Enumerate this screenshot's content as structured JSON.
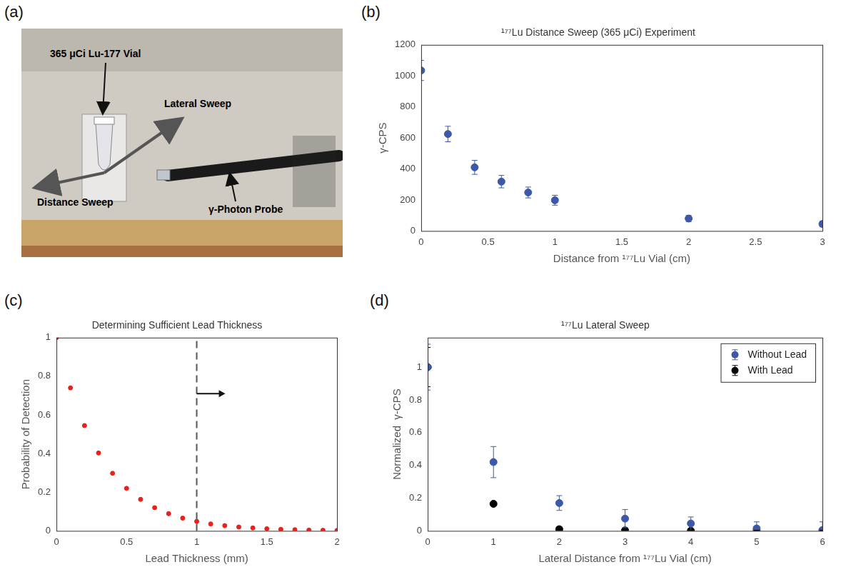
{
  "photo": {
    "panel": "(a)",
    "labels": [
      "365 μCi Lu-177 Vial",
      "Lateral Sweep",
      "Distance Sweep",
      "γ-Photon Probe"
    ]
  },
  "chart_data": [
    {
      "panel": "(b)",
      "type": "scatter",
      "title": "¹⁷⁷Lu Distance Sweep (365 μCi) Experiment",
      "x_label": "Distance from ¹⁷⁷Lu Vial (cm)",
      "y_label": "γ-CPS",
      "xlim": [
        0,
        3
      ],
      "xticks": [
        0,
        0.5,
        1,
        1.5,
        2,
        2.5,
        3
      ],
      "ylim": [
        0,
        1200
      ],
      "yticks": [
        0,
        200,
        400,
        600,
        800,
        1000,
        1200
      ],
      "grid": false,
      "series": [
        {
          "color": "#3d58a8",
          "marker": "circle",
          "x": [
            0,
            0.2,
            0.4,
            0.6,
            0.8,
            1,
            2,
            3
          ],
          "values": [
            1035,
            625,
            410,
            318,
            248,
            198,
            80,
            45
          ],
          "errors": [
            65,
            50,
            45,
            40,
            35,
            32,
            20,
            18
          ]
        }
      ]
    },
    {
      "panel": "(c)",
      "type": "scatter",
      "title": "Determining Sufficient Lead Thickness",
      "x_label": "Lead Thickness (mm)",
      "y_label": "Probability of Detection",
      "xlim": [
        0,
        2
      ],
      "xticks": [
        0,
        0.5,
        1,
        1.5,
        2
      ],
      "ylim": [
        0,
        1
      ],
      "yticks": [
        0,
        0.2,
        0.4,
        0.6,
        0.8,
        1
      ],
      "grid": false,
      "threshold": 1,
      "series": [
        {
          "color": "#e8211c",
          "marker": "circle",
          "x": [
            0,
            0.1,
            0.2,
            0.3,
            0.4,
            0.5,
            0.6,
            0.7,
            0.8,
            0.9,
            1,
            1.1,
            1.2,
            1.3,
            1.4,
            1.5,
            1.6,
            1.7,
            1.8,
            1.9,
            2
          ],
          "values": [
            1,
            0.74,
            0.545,
            0.403,
            0.298,
            0.22,
            0.163,
            0.12,
            0.089,
            0.066,
            0.049,
            0.036,
            0.027,
            0.02,
            0.015,
            0.011,
            0.008,
            0.006,
            0.004,
            0.003,
            0.002
          ]
        }
      ]
    },
    {
      "panel": "(d)",
      "type": "scatter",
      "title": "¹⁷⁷Lu Lateral Sweep",
      "x_label": "Lateral Distance from ¹⁷⁷Lu Vial (cm)",
      "y_label": "Normalized  γ-CPS",
      "xlim": [
        0,
        6
      ],
      "xticks": [
        0,
        1,
        2,
        3,
        4,
        5,
        6
      ],
      "ylim": [
        0,
        1.18
      ],
      "yticks": [
        0,
        0.2,
        0.4,
        0.6,
        0.8,
        1
      ],
      "grid": false,
      "legend": "northeast",
      "series": [
        {
          "name": "Without Lead",
          "color": "#3d58a8",
          "marker": "circle",
          "x": [
            0,
            1,
            2,
            3,
            4,
            5,
            6
          ],
          "values": [
            1,
            0.42,
            0.17,
            0.075,
            0.045,
            0.015,
            0.005
          ],
          "errors": [
            0.14,
            0.095,
            0.045,
            0.055,
            0.04,
            0.04,
            0.05
          ]
        },
        {
          "name": "With Lead",
          "color": "#000000",
          "marker": "circle",
          "x": [
            0,
            1,
            2,
            3,
            4,
            5,
            6
          ],
          "values": [
            1,
            0.165,
            0.01,
            0.003,
            0.001,
            0.001,
            0.001
          ],
          "errors": [
            0.12,
            0.01,
            0.015,
            0.005,
            0.003,
            0.003,
            0.003
          ]
        }
      ]
    }
  ]
}
